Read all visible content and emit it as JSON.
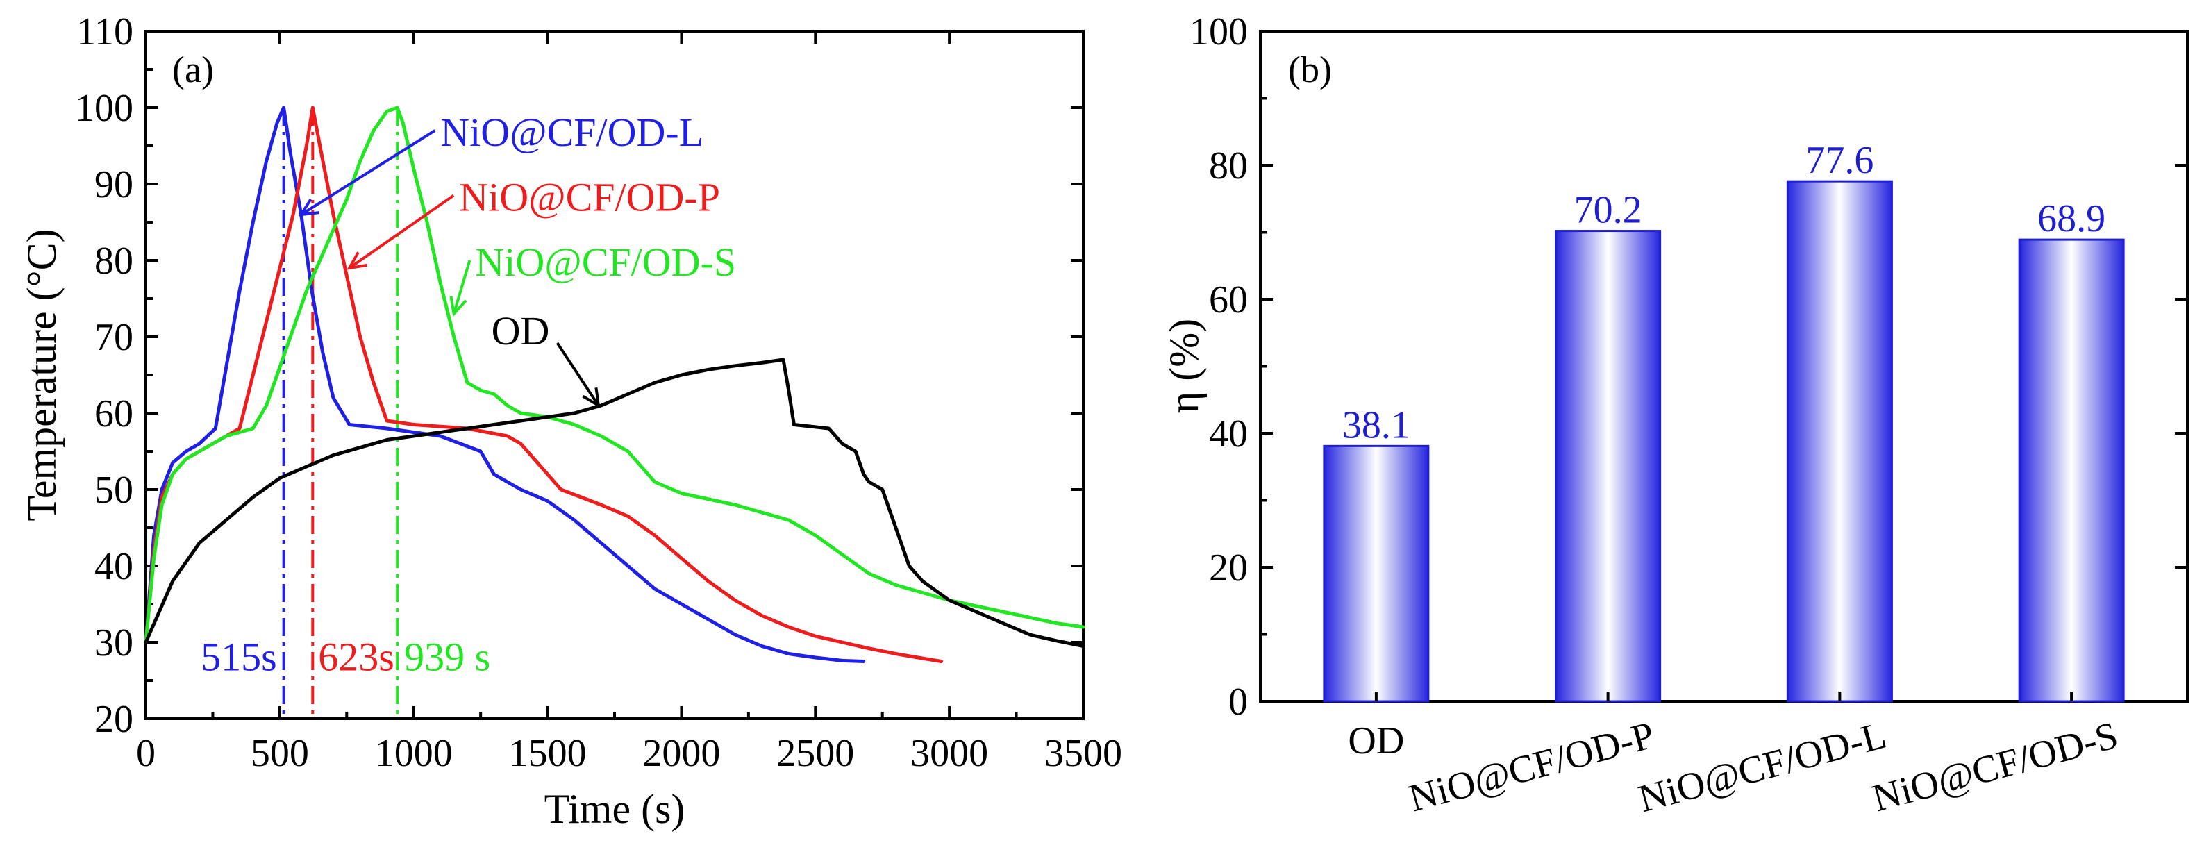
{
  "colors": {
    "blue": "#1f1fe6",
    "red": "#ee1c1c",
    "green": "#22e622",
    "black": "#000000",
    "bar_dark": "#2626e0",
    "bar_light": "#ffffff"
  },
  "chart_data": [
    {
      "panel": "(a)",
      "type": "line",
      "xlabel": "Time (s)",
      "ylabel": "Temperature (°C)",
      "xlim": [
        0,
        3500
      ],
      "ylim": [
        20,
        110
      ],
      "xticks": [
        0,
        500,
        1000,
        1500,
        2000,
        2500,
        3000,
        3500
      ],
      "yticks": [
        20,
        30,
        40,
        50,
        60,
        70,
        80,
        90,
        100,
        110
      ],
      "series": [
        {
          "name": "NiO@CF/OD-L",
          "color": "blue",
          "x": [
            0,
            30,
            60,
            100,
            150,
            200,
            260,
            300,
            350,
            400,
            450,
            490,
            515,
            540,
            580,
            620,
            660,
            700,
            760,
            900,
            1100,
            1250,
            1300,
            1400,
            1500,
            1600,
            1700,
            1800,
            1900,
            2000,
            2100,
            2200,
            2300,
            2400,
            2500,
            2600,
            2680
          ],
          "y": [
            30,
            44,
            50,
            53.5,
            55,
            56,
            58,
            66,
            76,
            85,
            93,
            98,
            100,
            94,
            86,
            76,
            68,
            62,
            58.5,
            58,
            57,
            55,
            52,
            50,
            48.5,
            46,
            43,
            40,
            37,
            35,
            33,
            31,
            29.5,
            28.5,
            28,
            27.6,
            27.5
          ]
        },
        {
          "name": "NiO@CF/OD-P",
          "color": "red",
          "x": [
            0,
            30,
            60,
            100,
            150,
            200,
            300,
            350,
            400,
            450,
            500,
            550,
            600,
            623,
            650,
            700,
            750,
            800,
            850,
            900,
            1000,
            1200,
            1350,
            1400,
            1500,
            1550,
            1700,
            1800,
            1900,
            2000,
            2100,
            2200,
            2300,
            2400,
            2500,
            2600,
            2700,
            2800,
            2900,
            2970
          ],
          "y": [
            30,
            42,
            49,
            52,
            54,
            55,
            57,
            58,
            65,
            72,
            79,
            86,
            95,
            100,
            95,
            86,
            78,
            70,
            64,
            59,
            58.5,
            58,
            57,
            56,
            52,
            50,
            48,
            46.5,
            44,
            41,
            38,
            35.5,
            33.5,
            32,
            30.8,
            30,
            29.2,
            28.5,
            27.9,
            27.5
          ]
        },
        {
          "name": "NiO@CF/OD-S",
          "color": "green",
          "x": [
            0,
            30,
            60,
            100,
            150,
            200,
            300,
            400,
            450,
            500,
            550,
            600,
            650,
            700,
            750,
            800,
            850,
            900,
            939,
            960,
            1000,
            1050,
            1100,
            1150,
            1200,
            1250,
            1300,
            1350,
            1400,
            1500,
            1600,
            1700,
            1800,
            1850,
            1900,
            2000,
            2200,
            2400,
            2500,
            2600,
            2700,
            2800,
            3000,
            3200,
            3400,
            3500
          ],
          "y": [
            30,
            41,
            48,
            52,
            54,
            55,
            57,
            58,
            61,
            66,
            71,
            76,
            80,
            84,
            88,
            93,
            97,
            99.5,
            100,
            98,
            92,
            85,
            77,
            70,
            64,
            63,
            62.5,
            61,
            60,
            59.5,
            58.5,
            57,
            55,
            53,
            51,
            49.5,
            48,
            46,
            44,
            41.5,
            39,
            37.5,
            35.5,
            34,
            32.5,
            32
          ]
        },
        {
          "name": "OD",
          "color": "black",
          "x": [
            0,
            50,
            100,
            200,
            300,
            400,
            500,
            600,
            700,
            800,
            900,
            1000,
            1100,
            1200,
            1300,
            1400,
            1500,
            1600,
            1700,
            1800,
            1900,
            2000,
            2100,
            2200,
            2300,
            2380,
            2400,
            2420,
            2550,
            2600,
            2650,
            2680,
            2700,
            2750,
            2800,
            2850,
            2900,
            3000,
            3100,
            3200,
            3300,
            3400,
            3500
          ],
          "y": [
            30,
            34,
            38,
            43,
            46,
            49,
            51.5,
            53,
            54.5,
            55.5,
            56.5,
            57,
            57.5,
            58,
            58.5,
            59,
            59.5,
            60,
            61,
            62.5,
            64,
            65,
            65.7,
            66.2,
            66.6,
            67,
            63,
            58.5,
            58,
            56,
            55,
            52,
            51,
            50,
            45,
            40,
            38,
            35.5,
            34,
            32.5,
            31,
            30.2,
            29.5
          ]
        }
      ],
      "vlines": [
        {
          "x": 515,
          "y_top": 100,
          "color": "blue",
          "label": "515s"
        },
        {
          "x": 623,
          "y_top": 100,
          "color": "red",
          "label": "623s"
        },
        {
          "x": 939,
          "y_top": 100,
          "color": "green",
          "label": "939 s"
        }
      ],
      "annotations": [
        {
          "text": "NiO@CF/OD-L",
          "color": "blue",
          "text_x": 1100,
          "text_y": 95,
          "arrow_to_x": 580,
          "arrow_to_y": 86
        },
        {
          "text": "NiO@CF/OD-P",
          "color": "red",
          "text_x": 1170,
          "text_y": 86.5,
          "arrow_to_x": 760,
          "arrow_to_y": 79
        },
        {
          "text": "NiO@CF/OD-S",
          "color": "green",
          "text_x": 1230,
          "text_y": 78,
          "arrow_to_x": 1150,
          "arrow_to_y": 73
        },
        {
          "text": "OD",
          "color": "black",
          "text_x": 1290,
          "text_y": 69,
          "arrow_to_x": 1690,
          "arrow_to_y": 61
        }
      ]
    },
    {
      "panel": "(b)",
      "type": "bar",
      "xlabel": "",
      "ylabel": "η (%)",
      "ylim": [
        0,
        100
      ],
      "yticks": [
        0,
        20,
        40,
        60,
        80,
        100
      ],
      "categories": [
        "OD",
        "NiO@CF/OD-P",
        "NiO@CF/OD-L",
        "NiO@CF/OD-S"
      ],
      "values": [
        38.1,
        70.2,
        77.6,
        68.9
      ],
      "value_labels": [
        "38.1",
        "70.2",
        "77.6",
        "68.9"
      ]
    }
  ]
}
